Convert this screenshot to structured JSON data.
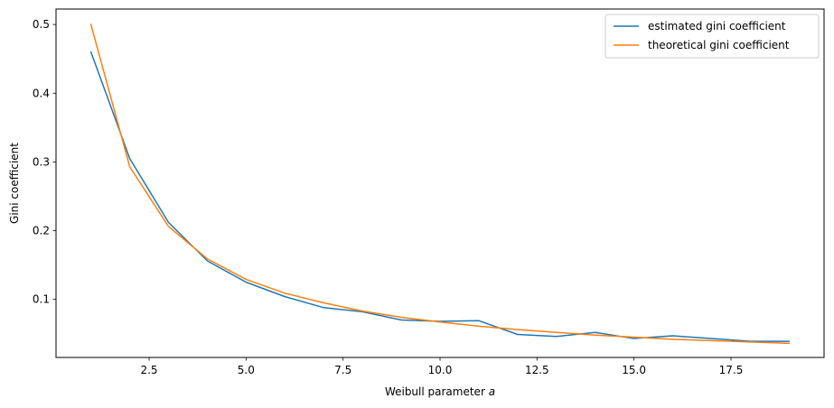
{
  "chart_data": {
    "type": "line",
    "title": "",
    "xlabel": "Weibull parameter ",
    "xlabel_var": "a",
    "ylabel": "Gini coefficient",
    "xlim": [
      0.1,
      19.9
    ],
    "ylim": [
      0.0155,
      0.5225
    ],
    "x_ticks": [
      2.5,
      5.0,
      7.5,
      10.0,
      12.5,
      15.0,
      17.5
    ],
    "x_tick_labels": [
      "2.5",
      "5.0",
      "7.5",
      "10.0",
      "12.5",
      "15.0",
      "17.5"
    ],
    "y_ticks": [
      0.1,
      0.2,
      0.3,
      0.4,
      0.5
    ],
    "y_tick_labels": [
      "0.1",
      "0.2",
      "0.3",
      "0.4",
      "0.5"
    ],
    "grid": false,
    "legend_position": "top-right",
    "x": [
      1,
      2,
      3,
      4,
      5,
      6,
      7,
      8,
      9,
      10,
      11,
      12,
      13,
      14,
      15,
      16,
      17,
      18,
      19
    ],
    "series": [
      {
        "name": "estimated gini coefficient",
        "color": "#1f77b4",
        "values": [
          0.46,
          0.305,
          0.212,
          0.156,
          0.125,
          0.104,
          0.088,
          0.082,
          0.07,
          0.068,
          0.069,
          0.049,
          0.046,
          0.052,
          0.043,
          0.047,
          0.043,
          0.039,
          0.039
        ]
      },
      {
        "name": "theoretical gini coefficient",
        "color": "#ff7f0e",
        "values": [
          0.5,
          0.293,
          0.206,
          0.159,
          0.129,
          0.109,
          0.095,
          0.083,
          0.074,
          0.067,
          0.061,
          0.056,
          0.052,
          0.048,
          0.045,
          0.042,
          0.04,
          0.038,
          0.036
        ]
      }
    ]
  }
}
